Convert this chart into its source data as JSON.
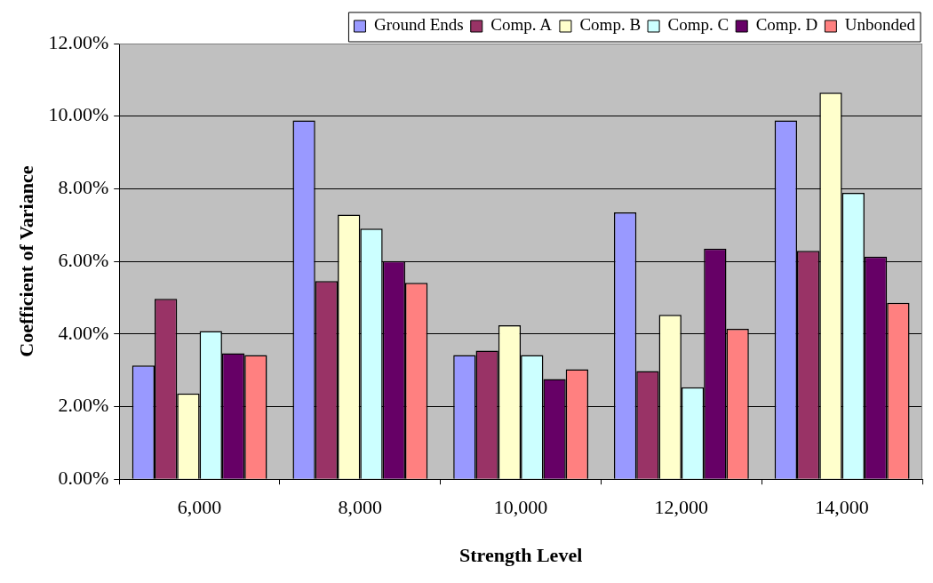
{
  "chart_data": {
    "type": "bar",
    "xlabel": "Strength Level",
    "ylabel": "Coefficient of Variance",
    "categories": [
      "6,000",
      "8,000",
      "10,000",
      "12,000",
      "14,000"
    ],
    "series": [
      {
        "name": "Ground Ends",
        "color": "#9999ff",
        "values": [
          3.13,
          9.88,
          3.42,
          7.35,
          9.88
        ]
      },
      {
        "name": "Comp. A",
        "color": "#993366",
        "values": [
          4.97,
          5.46,
          3.54,
          2.98,
          6.29
        ]
      },
      {
        "name": "Comp. B",
        "color": "#ffffcc",
        "values": [
          2.36,
          7.29,
          4.24,
          4.53,
          10.65
        ]
      },
      {
        "name": "Comp. C",
        "color": "#ccffff",
        "values": [
          4.08,
          6.9,
          3.42,
          2.53,
          7.89
        ]
      },
      {
        "name": "Comp. D",
        "color": "#660066",
        "values": [
          3.47,
          6.01,
          2.76,
          6.35,
          6.13
        ]
      },
      {
        "name": "Unbonded",
        "color": "#ff8080",
        "values": [
          3.42,
          5.41,
          3.03,
          4.14,
          4.86
        ]
      }
    ],
    "ylim": [
      0,
      12
    ],
    "yticks": [
      {
        "value": 0,
        "label": "0.00%"
      },
      {
        "value": 2,
        "label": "2.00%"
      },
      {
        "value": 4,
        "label": "4.00%"
      },
      {
        "value": 6,
        "label": "6.00%"
      },
      {
        "value": 8,
        "label": "8.00%"
      },
      {
        "value": 10,
        "label": "10.00%"
      },
      {
        "value": 12,
        "label": "12.00%"
      }
    ],
    "grid": "y",
    "legend": "top right"
  }
}
